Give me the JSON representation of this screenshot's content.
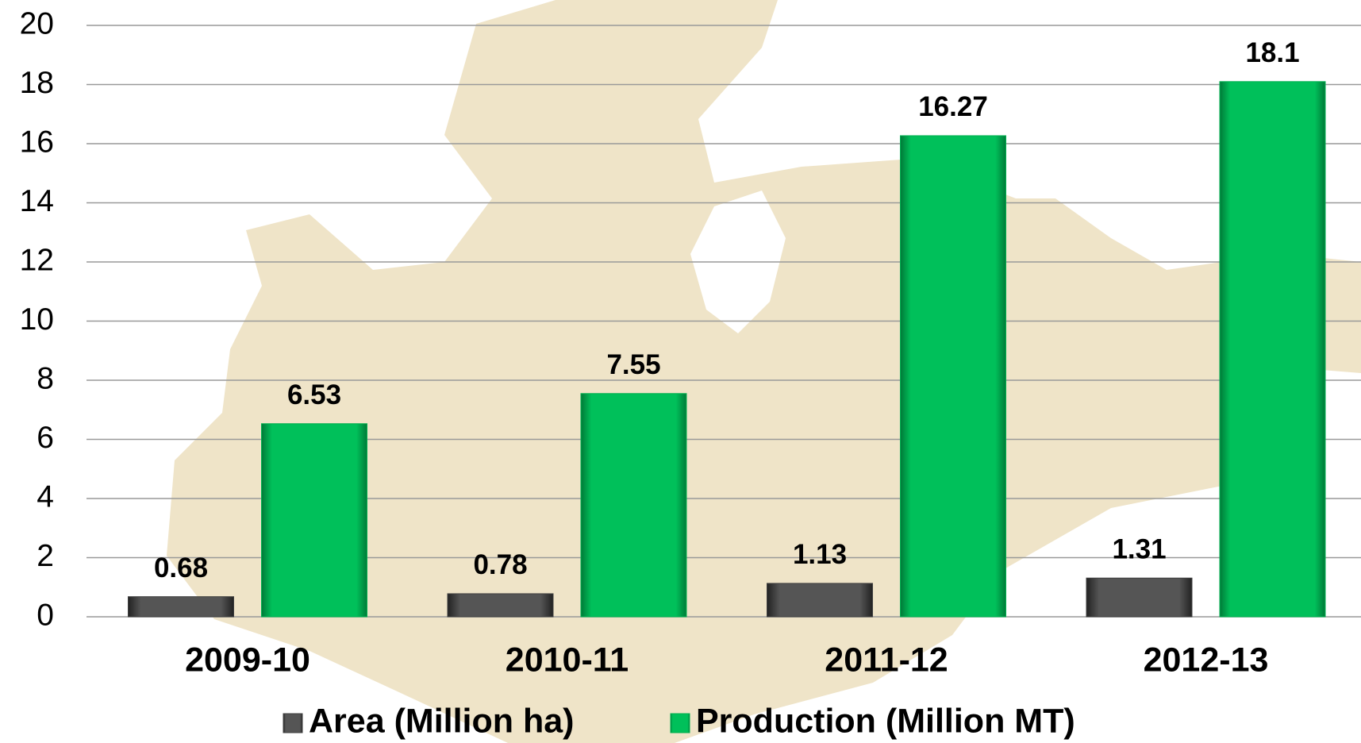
{
  "chart_data": {
    "type": "bar",
    "categories": [
      "2009-10",
      "2010-11",
      "2011-12",
      "2012-13"
    ],
    "series": [
      {
        "name": "Area (Million ha)",
        "color": "#404040",
        "values": [
          0.68,
          0.78,
          1.13,
          1.31
        ]
      },
      {
        "name": "Production (Million MT)",
        "color": "#00b050",
        "values": [
          6.53,
          7.55,
          16.27,
          18.1
        ]
      }
    ],
    "ylim": [
      0,
      20
    ],
    "yticks": [
      0,
      2,
      4,
      6,
      8,
      10,
      12,
      14,
      16,
      18,
      20
    ],
    "grid": true,
    "legend": "bottom"
  }
}
